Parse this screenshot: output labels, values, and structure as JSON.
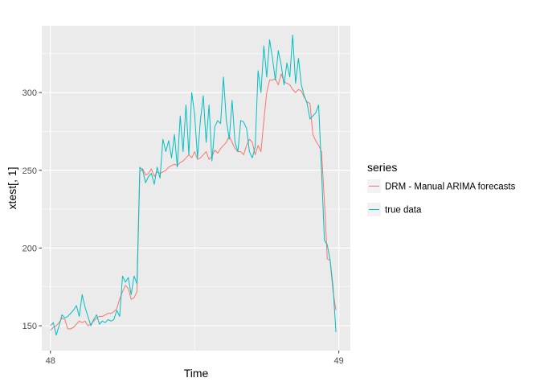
{
  "chart_data": {
    "type": "line",
    "xlabel": "Time",
    "ylabel": "xtest[, 1]",
    "xlim": [
      47.97,
      49.04
    ],
    "ylim": [
      134,
      343
    ],
    "x_ticks": [
      48,
      49
    ],
    "y_ticks": [
      150,
      200,
      250,
      300
    ],
    "grid": true,
    "background": "#ebebeb",
    "legend": {
      "title": "series",
      "position": "right"
    },
    "series": [
      {
        "name": "DRM - Manual ARIMA forecasts",
        "color": "#f8766d",
        "points": [
          [
            48.0,
            147
          ],
          [
            48.01,
            149
          ],
          [
            48.02,
            150
          ],
          [
            48.03,
            152
          ],
          [
            48.04,
            155
          ],
          [
            48.05,
            154
          ],
          [
            48.06,
            148
          ],
          [
            48.07,
            148
          ],
          [
            48.08,
            149
          ],
          [
            48.09,
            151
          ],
          [
            48.1,
            153
          ],
          [
            48.11,
            152
          ],
          [
            48.12,
            153
          ],
          [
            48.13,
            150
          ],
          [
            48.14,
            151
          ],
          [
            48.15,
            153
          ],
          [
            48.16,
            155
          ],
          [
            48.17,
            156
          ],
          [
            48.18,
            156
          ],
          [
            48.19,
            157
          ],
          [
            48.2,
            158
          ],
          [
            48.21,
            158
          ],
          [
            48.22,
            159
          ],
          [
            48.23,
            161
          ],
          [
            48.24,
            167
          ],
          [
            48.25,
            172
          ],
          [
            48.26,
            176
          ],
          [
            48.27,
            174
          ],
          [
            48.28,
            167
          ],
          [
            48.29,
            168
          ],
          [
            48.3,
            172
          ],
          [
            48.31,
            249
          ],
          [
            48.32,
            251
          ],
          [
            48.33,
            247
          ],
          [
            48.34,
            248
          ],
          [
            48.35,
            251
          ],
          [
            48.36,
            246
          ],
          [
            48.37,
            249
          ],
          [
            48.38,
            248
          ],
          [
            48.39,
            249
          ],
          [
            48.4,
            250
          ],
          [
            48.41,
            252
          ],
          [
            48.42,
            253
          ],
          [
            48.43,
            254
          ],
          [
            48.44,
            253
          ],
          [
            48.45,
            255
          ],
          [
            48.46,
            256
          ],
          [
            48.47,
            258
          ],
          [
            48.48,
            260
          ],
          [
            48.49,
            258
          ],
          [
            48.5,
            262
          ],
          [
            48.51,
            257
          ],
          [
            48.52,
            258
          ],
          [
            48.53,
            260
          ],
          [
            48.54,
            262
          ],
          [
            48.55,
            257
          ],
          [
            48.56,
            259
          ],
          [
            48.57,
            263
          ],
          [
            48.58,
            261
          ],
          [
            48.59,
            264
          ],
          [
            48.6,
            266
          ],
          [
            48.61,
            268
          ],
          [
            48.62,
            272
          ],
          [
            48.63,
            268
          ],
          [
            48.64,
            264
          ],
          [
            48.65,
            262
          ],
          [
            48.66,
            262
          ],
          [
            48.67,
            260
          ],
          [
            48.68,
            266
          ],
          [
            48.69,
            270
          ],
          [
            48.7,
            268
          ],
          [
            48.71,
            260
          ],
          [
            48.72,
            266
          ],
          [
            48.73,
            262
          ],
          [
            48.74,
            282
          ],
          [
            48.75,
            300
          ],
          [
            48.76,
            308
          ],
          [
            48.77,
            308
          ],
          [
            48.78,
            309
          ],
          [
            48.79,
            305
          ],
          [
            48.8,
            312
          ],
          [
            48.81,
            307
          ],
          [
            48.82,
            306
          ],
          [
            48.83,
            305
          ],
          [
            48.84,
            302
          ],
          [
            48.85,
            300
          ],
          [
            48.86,
            302
          ],
          [
            48.87,
            301
          ],
          [
            48.88,
            297
          ],
          [
            48.89,
            294
          ],
          [
            48.9,
            293
          ],
          [
            48.91,
            273
          ],
          [
            48.92,
            269
          ],
          [
            48.93,
            266
          ],
          [
            48.94,
            262
          ],
          [
            48.95,
            230
          ],
          [
            48.96,
            193
          ],
          [
            48.97,
            192
          ],
          [
            48.98,
            172
          ],
          [
            48.99,
            160
          ]
        ]
      },
      {
        "name": "true data",
        "color": "#00bfc4",
        "points": [
          [
            48.0,
            150
          ],
          [
            48.01,
            152
          ],
          [
            48.02,
            144
          ],
          [
            48.03,
            150
          ],
          [
            48.04,
            157
          ],
          [
            48.05,
            155
          ],
          [
            48.06,
            156
          ],
          [
            48.07,
            158
          ],
          [
            48.08,
            160
          ],
          [
            48.09,
            163
          ],
          [
            48.1,
            156
          ],
          [
            48.11,
            170
          ],
          [
            48.12,
            162
          ],
          [
            48.13,
            156
          ],
          [
            48.14,
            150
          ],
          [
            48.15,
            154
          ],
          [
            48.16,
            157
          ],
          [
            48.17,
            151
          ],
          [
            48.18,
            153
          ],
          [
            48.19,
            152
          ],
          [
            48.2,
            154
          ],
          [
            48.21,
            153
          ],
          [
            48.22,
            154
          ],
          [
            48.23,
            160
          ],
          [
            48.24,
            156
          ],
          [
            48.25,
            182
          ],
          [
            48.26,
            178
          ],
          [
            48.27,
            181
          ],
          [
            48.28,
            170
          ],
          [
            48.29,
            182
          ],
          [
            48.3,
            177
          ],
          [
            48.31,
            252
          ],
          [
            48.32,
            250
          ],
          [
            48.33,
            242
          ],
          [
            48.34,
            246
          ],
          [
            48.35,
            248
          ],
          [
            48.36,
            241
          ],
          [
            48.37,
            252
          ],
          [
            48.38,
            245
          ],
          [
            48.39,
            270
          ],
          [
            48.4,
            262
          ],
          [
            48.41,
            269
          ],
          [
            48.42,
            258
          ],
          [
            48.43,
            273
          ],
          [
            48.44,
            252
          ],
          [
            48.45,
            285
          ],
          [
            48.46,
            262
          ],
          [
            48.47,
            292
          ],
          [
            48.48,
            260
          ],
          [
            48.49,
            300
          ],
          [
            48.5,
            286
          ],
          [
            48.51,
            258
          ],
          [
            48.52,
            282
          ],
          [
            48.53,
            298
          ],
          [
            48.54,
            268
          ],
          [
            48.55,
            292
          ],
          [
            48.56,
            256
          ],
          [
            48.57,
            278
          ],
          [
            48.58,
            282
          ],
          [
            48.59,
            280
          ],
          [
            48.6,
            310
          ],
          [
            48.61,
            282
          ],
          [
            48.62,
            270
          ],
          [
            48.63,
            295
          ],
          [
            48.64,
            268
          ],
          [
            48.65,
            262
          ],
          [
            48.66,
            282
          ],
          [
            48.67,
            281
          ],
          [
            48.68,
            277
          ],
          [
            48.69,
            262
          ],
          [
            48.7,
            258
          ],
          [
            48.71,
            265
          ],
          [
            48.72,
            314
          ],
          [
            48.73,
            300
          ],
          [
            48.74,
            330
          ],
          [
            48.75,
            310
          ],
          [
            48.76,
            334
          ],
          [
            48.77,
            322
          ],
          [
            48.78,
            308
          ],
          [
            48.79,
            327
          ],
          [
            48.8,
            318
          ],
          [
            48.81,
            305
          ],
          [
            48.82,
            319
          ],
          [
            48.83,
            310
          ],
          [
            48.84,
            337
          ],
          [
            48.85,
            306
          ],
          [
            48.86,
            322
          ],
          [
            48.87,
            305
          ],
          [
            48.88,
            298
          ],
          [
            48.89,
            293
          ],
          [
            48.9,
            283
          ],
          [
            48.91,
            285
          ],
          [
            48.92,
            287
          ],
          [
            48.93,
            292
          ],
          [
            48.94,
            250
          ],
          [
            48.95,
            205
          ],
          [
            48.96,
            202
          ],
          [
            48.97,
            192
          ],
          [
            48.98,
            175
          ],
          [
            48.99,
            146
          ]
        ]
      }
    ]
  }
}
